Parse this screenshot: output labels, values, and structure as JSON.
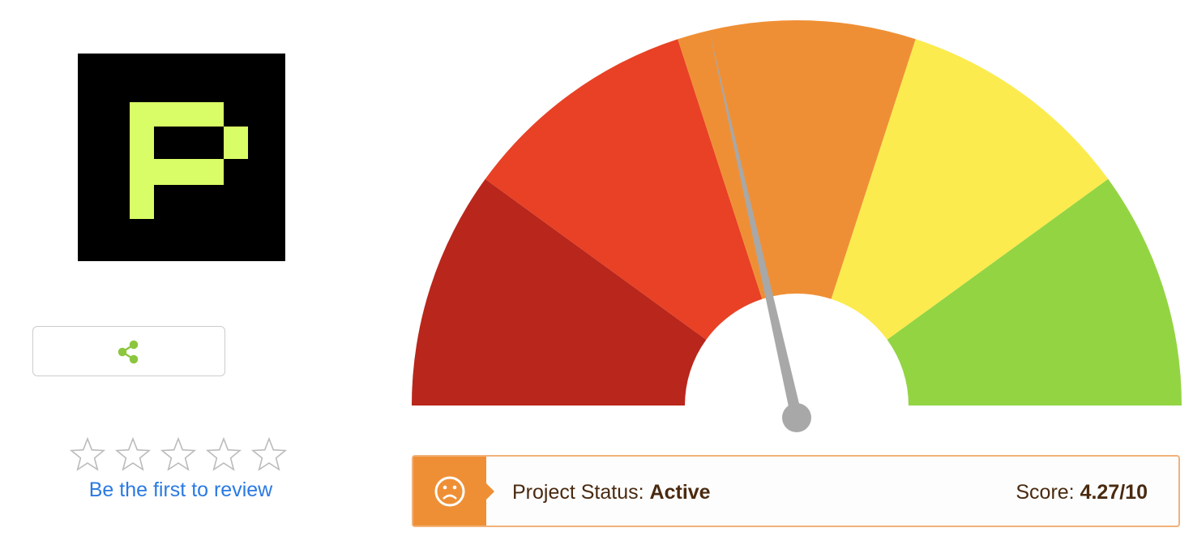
{
  "review": {
    "link": "Be the first to review"
  },
  "status": {
    "label": "Project Status:",
    "value": "Active"
  },
  "score": {
    "label": "Score:",
    "value": 4.27,
    "max": 10,
    "value_label": "4.27/10"
  }
}
